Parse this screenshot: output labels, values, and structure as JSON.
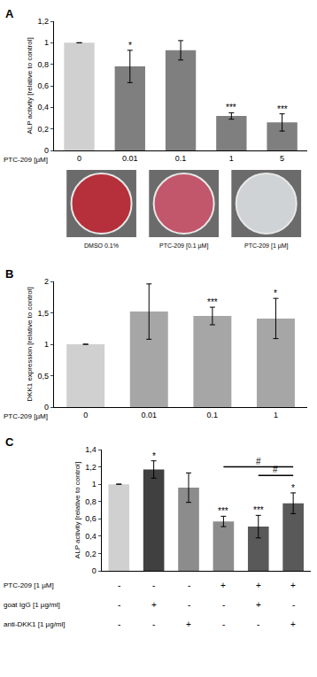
{
  "chart_data": [
    {
      "type": "bar",
      "panel": "A",
      "ylabel": "ALP activity [relative to control]",
      "xlabel": "PTC-209 [µM]",
      "categories": [
        "0",
        "0.01",
        "0.1",
        "1",
        "5"
      ],
      "values": [
        1,
        0.78,
        0.93,
        0.32,
        0.26
      ],
      "errors": [
        0,
        0.15,
        0.09,
        0.03,
        0.08
      ],
      "significance": [
        null,
        "*",
        null,
        "***",
        "***"
      ],
      "colors": [
        "#d0d0d0",
        "#7f7f7f",
        "#7f7f7f",
        "#7f7f7f",
        "#7f7f7f"
      ],
      "ylim": [
        0,
        1.2
      ],
      "yticks": [
        0,
        {
          "value": 0.2,
          "label": "0,2"
        },
        {
          "value": 0.4,
          "label": "0,4"
        },
        {
          "value": 0.6,
          "label": "0,6"
        },
        {
          "value": 0.8,
          "label": "0,8"
        },
        1,
        {
          "value": 1.2,
          "label": "1,2"
        }
      ],
      "images": [
        "DMSO 0.1%",
        "PTC-209 [0.1 µM]",
        "PTC-209 [1 µM]"
      ]
    },
    {
      "type": "bar",
      "panel": "B",
      "ylabel": "DKK1 expression [relative to control]",
      "xlabel": "PTC-209 [µM]",
      "categories": [
        "0",
        "0.01",
        "0.1",
        "1"
      ],
      "values": [
        1,
        1.52,
        1.45,
        1.41
      ],
      "errors": [
        0,
        0.44,
        0.14,
        0.32
      ],
      "significance": [
        null,
        null,
        "***",
        "*"
      ],
      "colors": [
        "#d0d0d0",
        "#a6a6a6",
        "#a6a6a6",
        "#a6a6a6"
      ],
      "ylim": [
        0,
        2
      ],
      "yticks": [
        0,
        {
          "value": 0.5,
          "label": "0,5"
        },
        1,
        {
          "value": 1.5,
          "label": "1,5"
        },
        2
      ]
    },
    {
      "type": "bar",
      "panel": "C",
      "ylabel": "ALP activity [relative to control]",
      "categories": [
        null,
        null,
        null,
        null,
        null,
        null
      ],
      "tick_labels": "y",
      "values": [
        1,
        1.17,
        0.96,
        0.57,
        0.51,
        0.78
      ],
      "errors": [
        0,
        0.1,
        0.17,
        0.06,
        0.13,
        0.12
      ],
      "significance": [
        null,
        "*",
        null,
        "***",
        "***",
        "*"
      ],
      "colors": [
        "#d0d0d0",
        "#404040",
        "#8c8c8c",
        "#8c8c8c",
        "#595959",
        "#595959"
      ],
      "ylim": [
        0,
        1.4
      ],
      "yticks": [
        0,
        {
          "value": 0.2,
          "label": "0,2"
        },
        {
          "value": 0.4,
          "label": "0,4"
        },
        {
          "value": 0.6,
          "label": "0,6"
        },
        {
          "value": 0.8,
          "label": "0,8"
        },
        1,
        {
          "value": 1.2,
          "label": "1,2"
        },
        {
          "value": 1.4,
          "label": "1,4"
        }
      ],
      "comparisons": [
        {
          "from": 3,
          "to": 5,
          "y": 1.2,
          "label": "#"
        },
        {
          "from": 4,
          "to": 5,
          "y": 1.1,
          "label": "#"
        }
      ],
      "conditions": [
        {
          "label": "PTC-209 [1 µM]",
          "values": [
            "-",
            "-",
            "-",
            "+",
            "+",
            "+"
          ]
        },
        {
          "label": "goat IgG [1 µg/ml]",
          "values": [
            "-",
            "+",
            "-",
            "-",
            "+",
            "-"
          ]
        },
        {
          "label": "anti-DKK1 [1 µg/ml]",
          "values": [
            "-",
            "-",
            "+",
            "-",
            "-",
            "+"
          ]
        }
      ]
    }
  ]
}
